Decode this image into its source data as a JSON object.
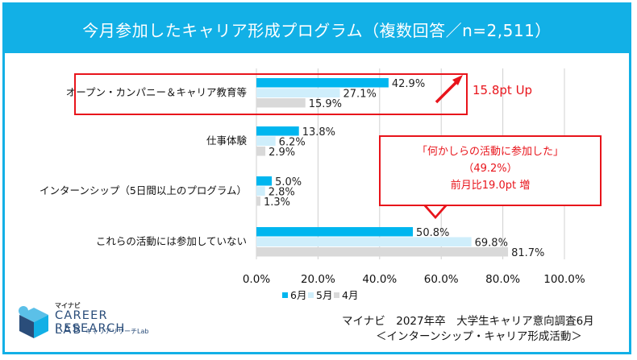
{
  "title": "今月参加したキャリア形成プログラム（複数回答／n=2,511）",
  "chart_data": {
    "type": "bar",
    "orientation": "horizontal",
    "categories": [
      "オープン・カンパニー＆キャリア教育等",
      "仕事体験",
      "インターンシップ（5日間以上のプログラム）",
      "これらの活動には参加していない"
    ],
    "series": [
      {
        "name": "6月",
        "color": "#00b6ef",
        "values": [
          42.9,
          13.8,
          5.0,
          50.8
        ],
        "labels": [
          "42.9%",
          "13.8%",
          "5.0%",
          "50.8%"
        ]
      },
      {
        "name": "5月",
        "color": "#cfeefb",
        "values": [
          27.1,
          6.2,
          2.8,
          69.8
        ],
        "labels": [
          "27.1%",
          "6.2%",
          "2.8%",
          "69.8%"
        ]
      },
      {
        "name": "4月",
        "color": "#d9d9d9",
        "values": [
          15.9,
          2.9,
          1.3,
          81.7
        ],
        "labels": [
          "15.9%",
          "2.9%",
          "1.3%",
          "81.7%"
        ]
      }
    ],
    "xlim": [
      0,
      100
    ],
    "xticks": [
      "0.0%",
      "20.0%",
      "40.0%",
      "60.0%",
      "80.0%",
      "100.0%"
    ],
    "grid": true,
    "legend_position": "bottom"
  },
  "annotations": {
    "up_text": "15.8pt Up",
    "callout_line1": "「何かしらの活動に参加した」",
    "callout_line2": "（49.2%）",
    "callout_line3": "前月比19.0pt 増"
  },
  "logo": {
    "small": "マイナビ",
    "main": "CAREER RESEARCH",
    "lab": "LAB",
    "sub": "キャリアリサーチLab"
  },
  "source": {
    "line1": "マイナビ　2027年卒　大学生キャリア意向調査6月",
    "line2": "＜インターンシップ・キャリア形成活動＞"
  },
  "colors": {
    "accent": "#12b0e6",
    "highlight": "#e8141b"
  }
}
